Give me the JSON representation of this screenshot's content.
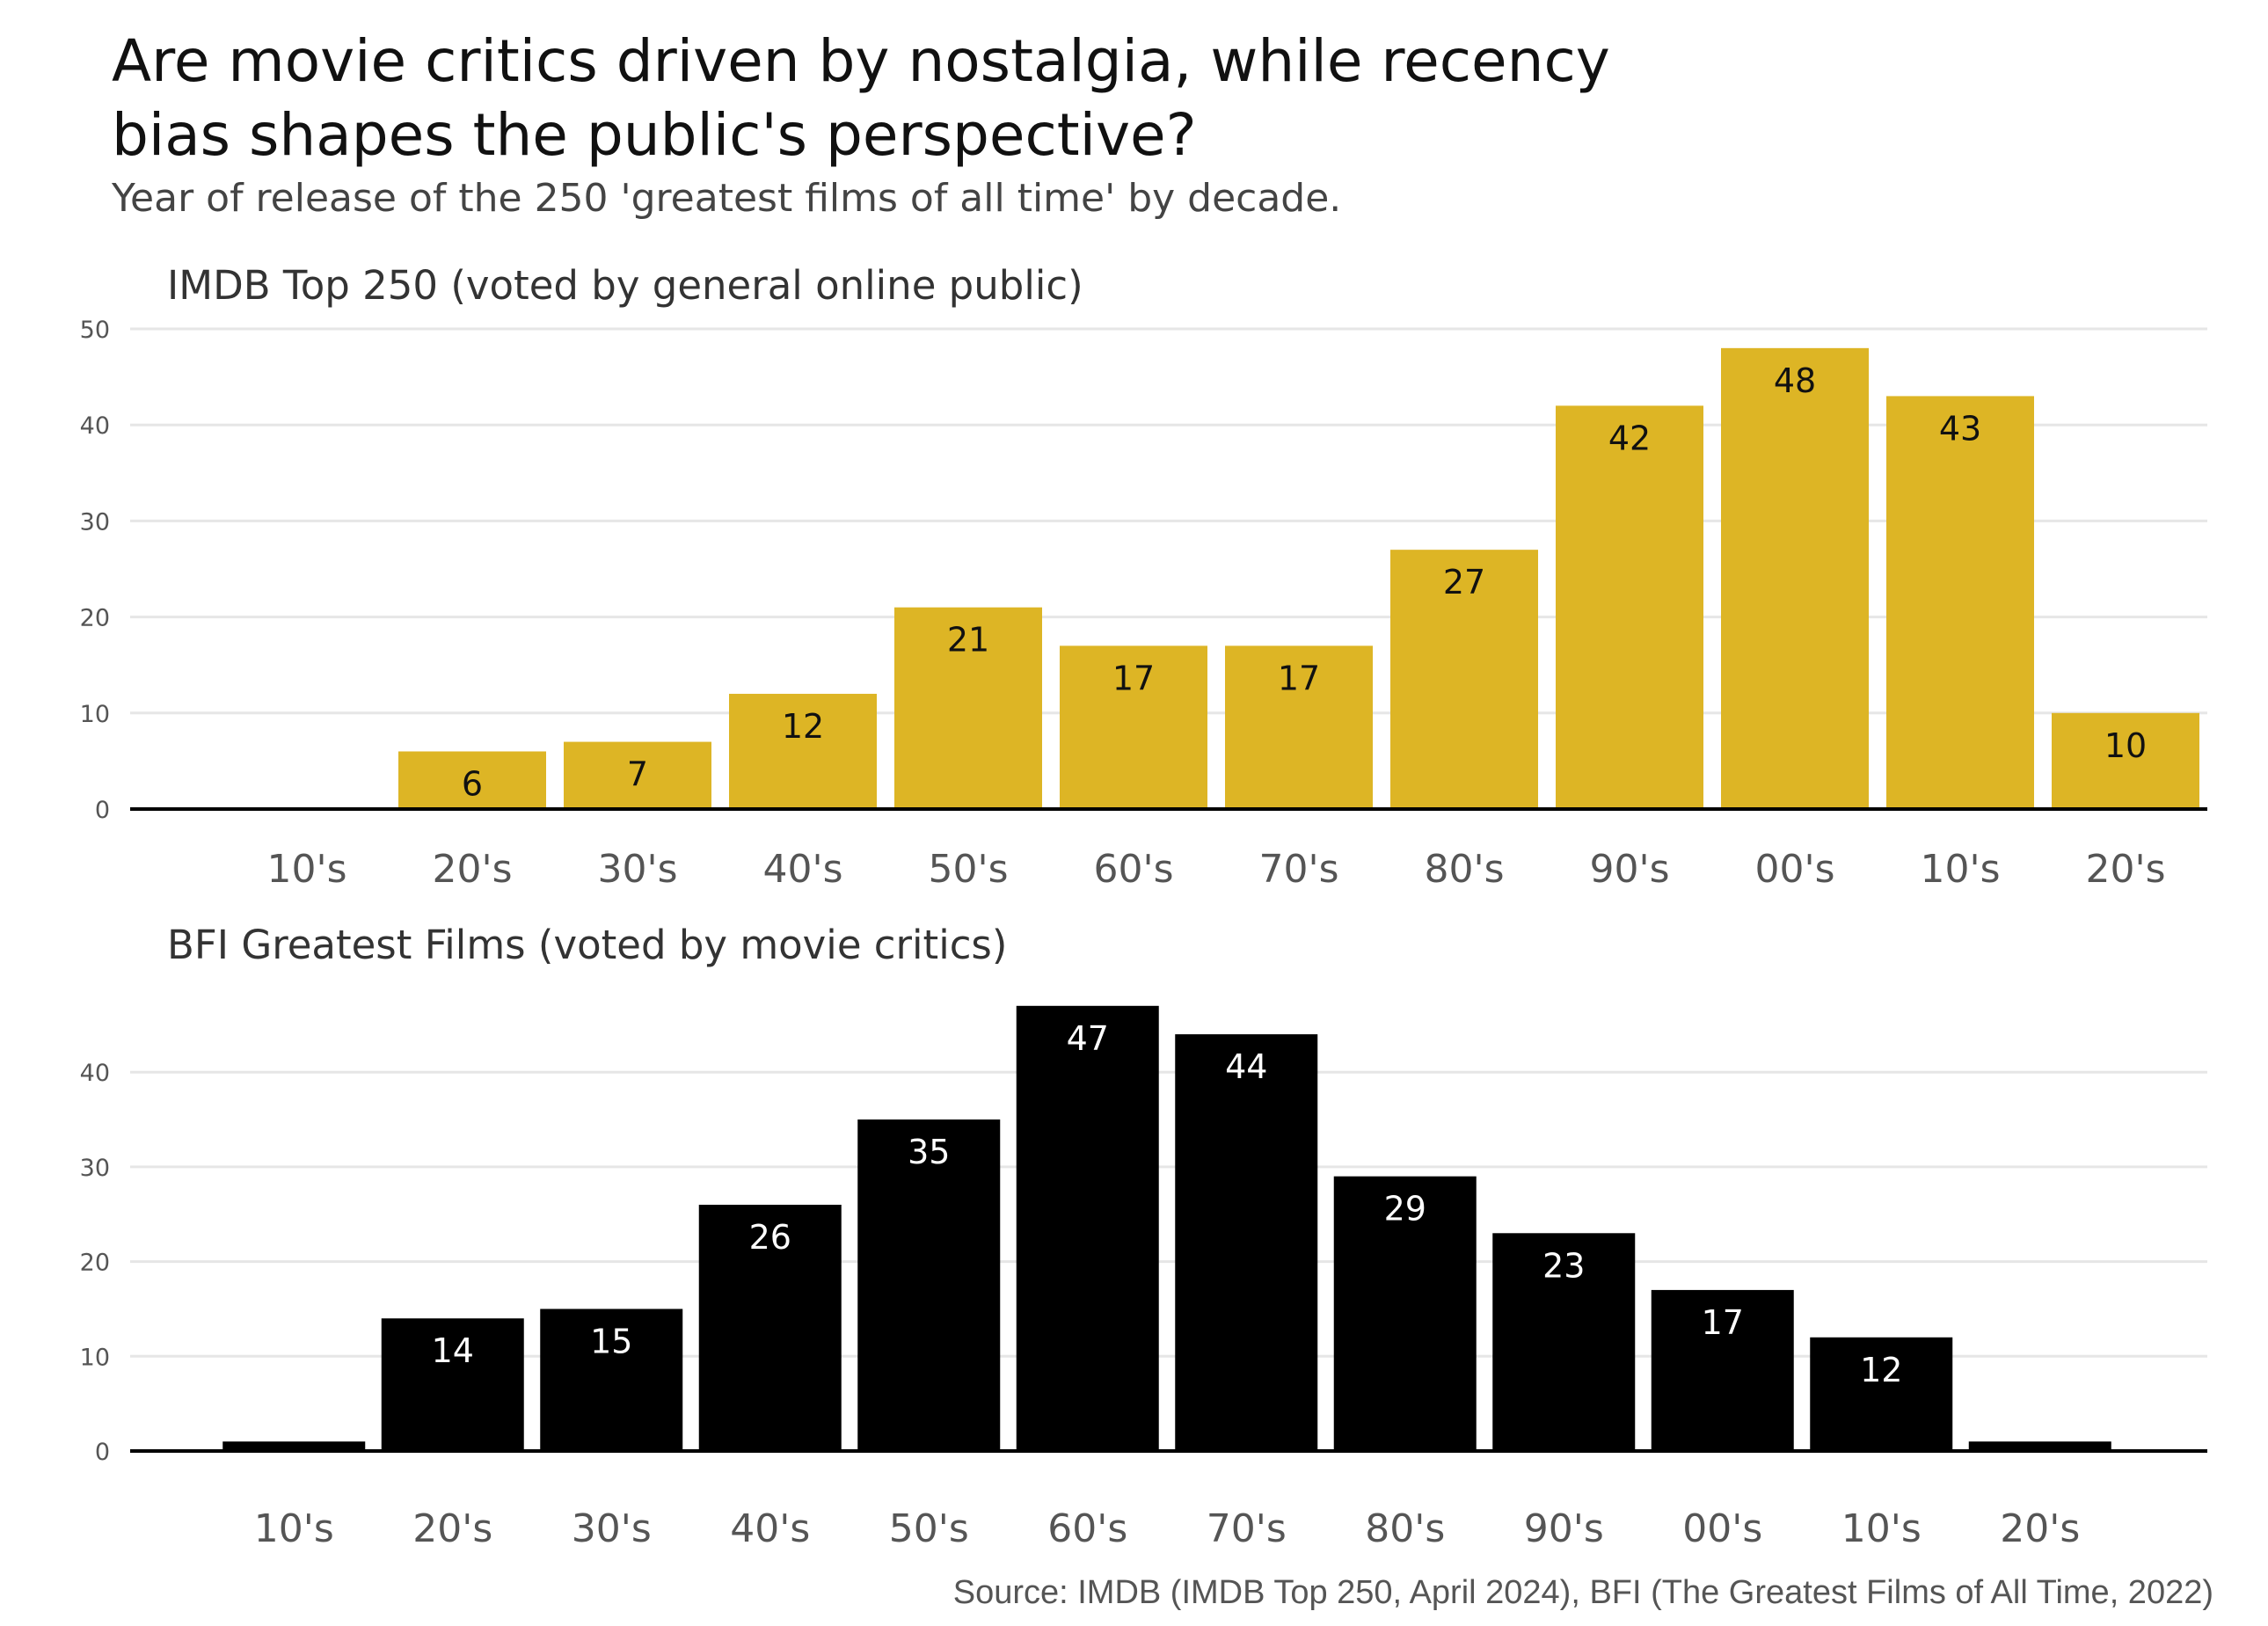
{
  "title_lines": [
    "Are movie critics driven by nostalgia, while recency",
    "bias shapes the public's perspective?"
  ],
  "subtitle": "Year of release of the 250 'greatest films of all time' by decade.",
  "source": "Source: IMDB (IMDB Top 250, April 2024), BFI (The Greatest Films of All Time, 2022)",
  "chart_data": [
    {
      "type": "bar",
      "title": "IMDB Top 250 (voted by general online public)",
      "categories": [
        "10's",
        "20's",
        "30's",
        "40's",
        "50's",
        "60's",
        "70's",
        "80's",
        "90's",
        "00's",
        "10's",
        "20's"
      ],
      "values": [
        0,
        6,
        7,
        12,
        21,
        17,
        17,
        27,
        42,
        48,
        43,
        10
      ],
      "data_labels": [
        "",
        "6",
        "7",
        "12",
        "21",
        "17",
        "17",
        "27",
        "42",
        "48",
        "43",
        "10"
      ],
      "yticks": [
        0,
        10,
        20,
        30,
        40,
        50
      ],
      "ylim": [
        0,
        50
      ],
      "color": "#DDB525",
      "label_color": "#111111",
      "grid": true
    },
    {
      "type": "bar",
      "title": "BFI Greatest Films (voted by movie critics)",
      "categories": [
        "10's",
        "20's",
        "30's",
        "40's",
        "50's",
        "60's",
        "70's",
        "80's",
        "90's",
        "00's",
        "10's",
        "20's"
      ],
      "values": [
        1,
        14,
        15,
        26,
        35,
        47,
        44,
        29,
        23,
        17,
        12,
        1
      ],
      "data_labels": [
        "",
        "14",
        "15",
        "26",
        "35",
        "47",
        "44",
        "29",
        "23",
        "17",
        "12",
        ""
      ],
      "yticks": [
        0,
        10,
        20,
        30,
        40
      ],
      "ylim": [
        0,
        47
      ],
      "color": "#000000",
      "label_color": "#ffffff",
      "grid": true
    }
  ]
}
